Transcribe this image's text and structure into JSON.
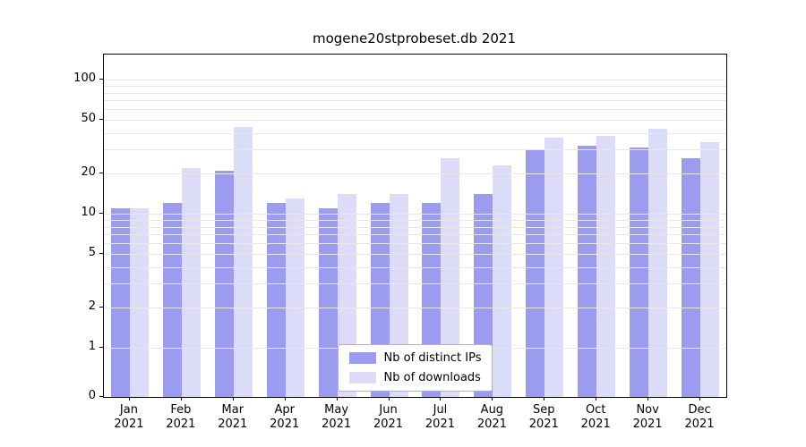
{
  "chart_data": {
    "type": "bar",
    "title": "mogene20stprobeset.db 2021",
    "xlabel": "",
    "ylabel": "",
    "year": "2021",
    "categories": [
      "Jan",
      "Feb",
      "Mar",
      "Apr",
      "May",
      "Jun",
      "Jul",
      "Aug",
      "Sep",
      "Oct",
      "Nov",
      "Dec"
    ],
    "series": [
      {
        "name": "Nb of distinct IPs",
        "color": "#9b9bef",
        "values": [
          11,
          12,
          21,
          12,
          11,
          12,
          12,
          14,
          30,
          32,
          31,
          26
        ]
      },
      {
        "name": "Nb of downloads",
        "color": "#dcdcf8",
        "values": [
          11,
          22,
          44,
          13,
          14,
          14,
          26,
          23,
          37,
          38,
          43,
          34
        ]
      }
    ],
    "yscale": "symlog",
    "ylim": [
      0,
      130
    ],
    "yticks": [
      100,
      50,
      20,
      10,
      5,
      2,
      1,
      0
    ],
    "minor_gridlines": [
      1,
      2,
      3,
      4,
      5,
      6,
      7,
      8,
      9,
      10,
      20,
      30,
      40,
      50,
      60,
      70,
      80,
      90,
      100
    ],
    "grid": true,
    "legend_position": "lower center"
  }
}
